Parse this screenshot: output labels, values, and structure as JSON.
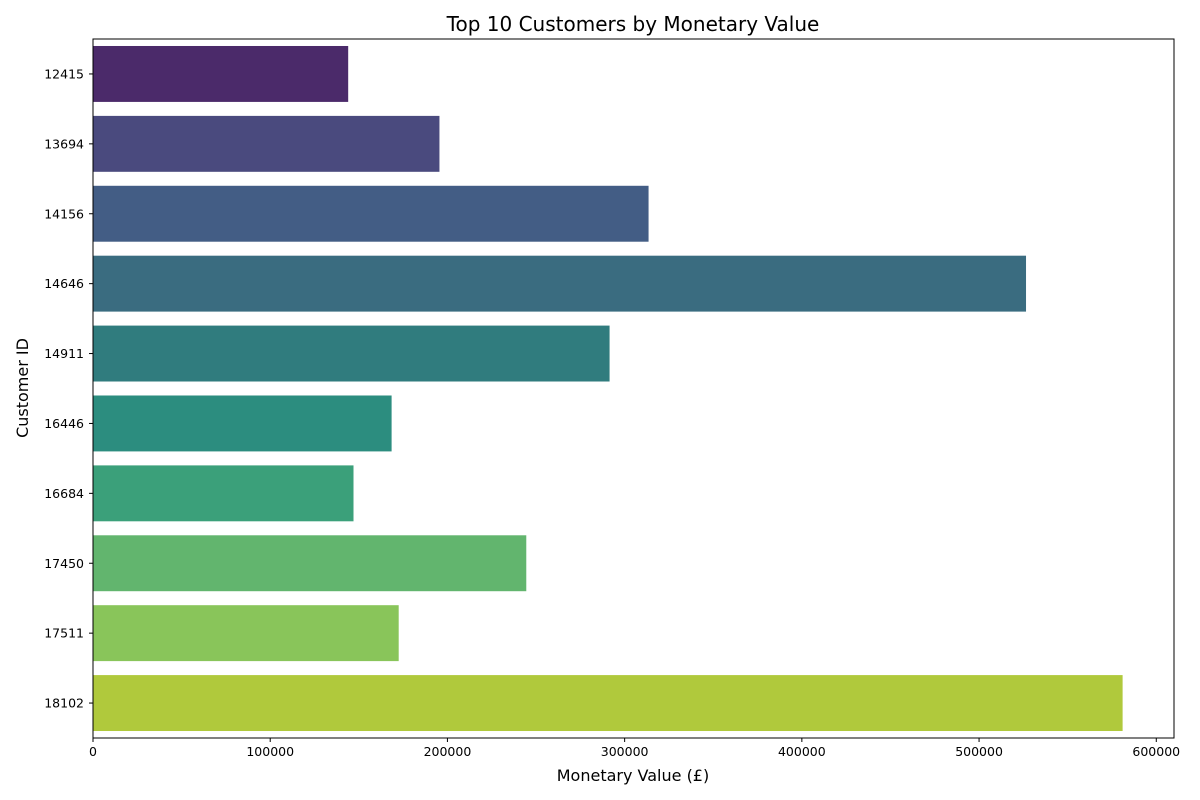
{
  "chart_data": {
    "type": "bar",
    "orientation": "horizontal",
    "title": "Top 10 Customers by Monetary Value",
    "xlabel": "Monetary Value (£)",
    "ylabel": "Customer ID",
    "xlim": [
      0,
      610000
    ],
    "xticks": [
      0,
      100000,
      200000,
      300000,
      400000,
      500000,
      600000
    ],
    "grid": false,
    "categories": [
      "12415",
      "13694",
      "14156",
      "14646",
      "14911",
      "16446",
      "16684",
      "17450",
      "17511",
      "18102"
    ],
    "values": [
      144000,
      195500,
      313500,
      526500,
      291500,
      168500,
      147000,
      244500,
      172500,
      581000
    ],
    "colors": [
      "#4b2a6a",
      "#4a4a7e",
      "#435d85",
      "#3a6c80",
      "#307c7e",
      "#2c8d7f",
      "#3ba07a",
      "#62b56e",
      "#89c55a",
      "#b0c93c"
    ]
  }
}
